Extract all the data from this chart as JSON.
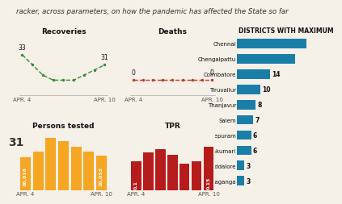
{
  "header": "racker, across parameters, on how the pandemic has affected the State so far",
  "recoveries": {
    "title": "Recoveries",
    "values": [
      33,
      31,
      29,
      28,
      28,
      28,
      29,
      30,
      31
    ],
    "start_label": "33",
    "end_label": "31",
    "x_start": "APR. 4",
    "x_end": "APR. 10",
    "color": "#3a8a3a"
  },
  "deaths": {
    "title": "Deaths",
    "values": [
      0,
      0,
      0,
      0,
      0,
      0,
      0,
      0,
      0
    ],
    "start_label": "0",
    "end_label": "0",
    "x_start": "APR. 4",
    "x_end": "APR. 10",
    "color": "#c0392b"
  },
  "persons_tested": {
    "title": "Persons tested",
    "values": [
      20018,
      20120,
      20380,
      20320,
      20220,
      20130,
      20053
    ],
    "first_label": "20,018",
    "last_label": "20,053",
    "left_label": "31",
    "x_start": "APR. 4",
    "x_end": "APR. 10",
    "color": "#f5a623"
  },
  "tpr": {
    "title": "TPR",
    "values": [
      0.1,
      0.13,
      0.14,
      0.12,
      0.09,
      0.1,
      0.15
    ],
    "first_label": "0.1",
    "last_label": "0.15",
    "x_start": "APR. 4",
    "x_end": "APR. 10",
    "color": "#b71c1c"
  },
  "districts": {
    "title": "DISTRICTS WITH MAXIMUM",
    "names": [
      "Chennai",
      "Chengalpattu",
      "Coimbatore",
      "Tiruvallur",
      "Thanjavur",
      "Salem",
      "Kancheepuram",
      "Kanniyakumari",
      "Cuddalore",
      "Sivaganga"
    ],
    "values": [
      30,
      25,
      14,
      10,
      8,
      7,
      6,
      6,
      3,
      3
    ],
    "show_values": [
      false,
      false,
      true,
      true,
      true,
      true,
      true,
      true,
      true,
      true
    ],
    "color": "#1a7fa8"
  },
  "bg_color": "#f5f0e8"
}
